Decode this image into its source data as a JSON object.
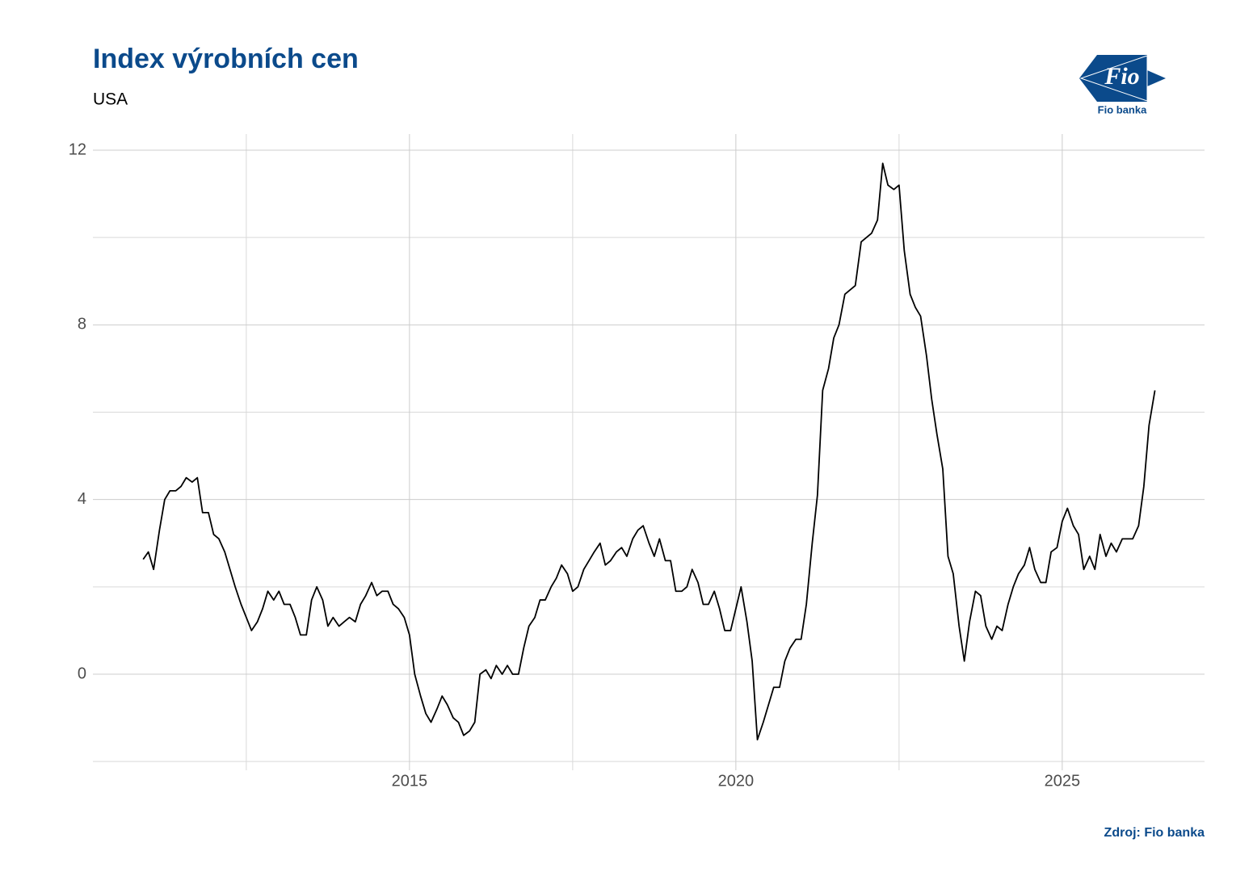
{
  "chart_data": {
    "type": "line",
    "title": "Index výrobních cen",
    "subtitle": "USA",
    "source": "Zdroj: Fio banka",
    "logo": {
      "mark": "Fio",
      "name": "Fio banka"
    },
    "color": "#000000",
    "x": [
      2010.92,
      2011.0,
      2011.08,
      2011.17,
      2011.25,
      2011.33,
      2011.42,
      2011.5,
      2011.58,
      2011.67,
      2011.75,
      2011.83,
      2011.92,
      2012.0,
      2012.08,
      2012.17,
      2012.25,
      2012.33,
      2012.42,
      2012.5,
      2012.58,
      2012.67,
      2012.75,
      2012.83,
      2012.92,
      2013.0,
      2013.08,
      2013.17,
      2013.25,
      2013.33,
      2013.42,
      2013.5,
      2013.58,
      2013.67,
      2013.75,
      2013.83,
      2013.92,
      2014.0,
      2014.08,
      2014.17,
      2014.25,
      2014.33,
      2014.42,
      2014.5,
      2014.58,
      2014.67,
      2014.75,
      2014.83,
      2014.92,
      2015.0,
      2015.08,
      2015.17,
      2015.25,
      2015.33,
      2015.42,
      2015.5,
      2015.58,
      2015.67,
      2015.75,
      2015.83,
      2015.92,
      2016.0,
      2016.08,
      2016.17,
      2016.25,
      2016.33,
      2016.42,
      2016.5,
      2016.58,
      2016.67,
      2016.75,
      2016.83,
      2016.92,
      2017.0,
      2017.08,
      2017.17,
      2017.25,
      2017.33,
      2017.42,
      2017.5,
      2017.58,
      2017.67,
      2017.75,
      2017.83,
      2017.92,
      2018.0,
      2018.08,
      2018.17,
      2018.25,
      2018.33,
      2018.42,
      2018.5,
      2018.58,
      2018.67,
      2018.75,
      2018.83,
      2018.92,
      2019.0,
      2019.08,
      2019.17,
      2019.25,
      2019.33,
      2019.42,
      2019.5,
      2019.58,
      2019.67,
      2019.75,
      2019.83,
      2019.92,
      2020.0,
      2020.08,
      2020.17,
      2020.25,
      2020.33,
      2020.42,
      2020.5,
      2020.58,
      2020.67,
      2020.75,
      2020.83,
      2020.92,
      2021.0,
      2021.08,
      2021.17,
      2021.25,
      2021.33,
      2021.42,
      2021.5,
      2021.58,
      2021.67,
      2021.75,
      2021.83,
      2021.92,
      2022.0,
      2022.08,
      2022.17,
      2022.25,
      2022.33,
      2022.42,
      2022.5,
      2022.58,
      2022.67,
      2022.75,
      2022.83,
      2022.92,
      2023.0,
      2023.08,
      2023.17,
      2023.25,
      2023.33,
      2023.42,
      2023.5,
      2023.58,
      2023.67,
      2023.75,
      2023.83,
      2023.92,
      2024.0,
      2024.08,
      2024.17,
      2024.25,
      2024.33,
      2024.42,
      2024.5,
      2024.58,
      2024.67,
      2024.75,
      2024.83,
      2024.92,
      2025.0,
      2025.08,
      2025.17,
      2025.25,
      2025.33,
      2025.42,
      2025.5,
      2025.58,
      2025.67,
      2025.75,
      2025.83,
      2025.92,
      2026.0,
      2026.08,
      2026.17,
      2026.25,
      2026.33,
      2026.42
    ],
    "values": [
      2.63,
      2.8,
      2.4,
      3.3,
      4.0,
      4.2,
      4.2,
      4.3,
      4.5,
      4.4,
      4.5,
      3.7,
      3.7,
      3.2,
      3.1,
      2.8,
      2.4,
      2.0,
      1.6,
      1.3,
      1.0,
      1.2,
      1.5,
      1.9,
      1.7,
      1.9,
      1.6,
      1.6,
      1.3,
      0.9,
      0.9,
      1.7,
      2.0,
      1.7,
      1.1,
      1.3,
      1.1,
      1.2,
      1.3,
      1.2,
      1.6,
      1.8,
      2.1,
      1.8,
      1.9,
      1.9,
      1.6,
      1.5,
      1.3,
      0.9,
      0.0,
      -0.5,
      -0.9,
      -1.1,
      -0.8,
      -0.5,
      -0.7,
      -1.0,
      -1.1,
      -1.4,
      -1.3,
      -1.1,
      0.0,
      0.1,
      -0.1,
      0.2,
      0.0,
      0.2,
      0.0,
      0.0,
      0.6,
      1.1,
      1.3,
      1.7,
      1.7,
      2.0,
      2.2,
      2.5,
      2.3,
      1.9,
      2.0,
      2.4,
      2.6,
      2.8,
      3.0,
      2.5,
      2.6,
      2.8,
      2.9,
      2.7,
      3.1,
      3.3,
      3.4,
      3.0,
      2.7,
      3.1,
      2.6,
      2.6,
      1.9,
      1.9,
      2.0,
      2.4,
      2.1,
      1.6,
      1.6,
      1.9,
      1.5,
      1.0,
      1.0,
      1.5,
      2.0,
      1.2,
      0.3,
      -1.5,
      -1.1,
      -0.7,
      -0.3,
      -0.3,
      0.3,
      0.6,
      0.8,
      0.8,
      1.6,
      3.0,
      4.1,
      6.5,
      7.0,
      7.7,
      8.0,
      8.7,
      8.8,
      8.9,
      9.9,
      10.0,
      10.1,
      10.4,
      11.7,
      11.2,
      11.1,
      11.2,
      9.7,
      8.7,
      8.4,
      8.2,
      7.3,
      6.3,
      5.5,
      4.7,
      2.7,
      2.3,
      1.1,
      0.3,
      1.2,
      1.9,
      1.8,
      1.1,
      0.8,
      1.1,
      1.0,
      1.6,
      2.0,
      2.3,
      2.5,
      2.9,
      2.4,
      2.1,
      2.1,
      2.8,
      2.9,
      3.5,
      3.8,
      3.4,
      3.2,
      2.4,
      2.7,
      2.4,
      3.2,
      2.7,
      3.0,
      2.8,
      3.1,
      3.1,
      3.1,
      3.4,
      4.3,
      5.7,
      6.5
    ],
    "xlim": [
      2010.15,
      2027.18
    ],
    "xticks": [
      2015,
      2020,
      2025
    ],
    "x_minor_ticks": [
      2012.5,
      2017.5,
      2022.5
    ],
    "ylim": [
      -2.2,
      12.37
    ],
    "yticks": [
      0,
      4,
      8,
      12
    ],
    "y_minor_ticks": [
      -2,
      2,
      6,
      10
    ],
    "grid": true
  }
}
